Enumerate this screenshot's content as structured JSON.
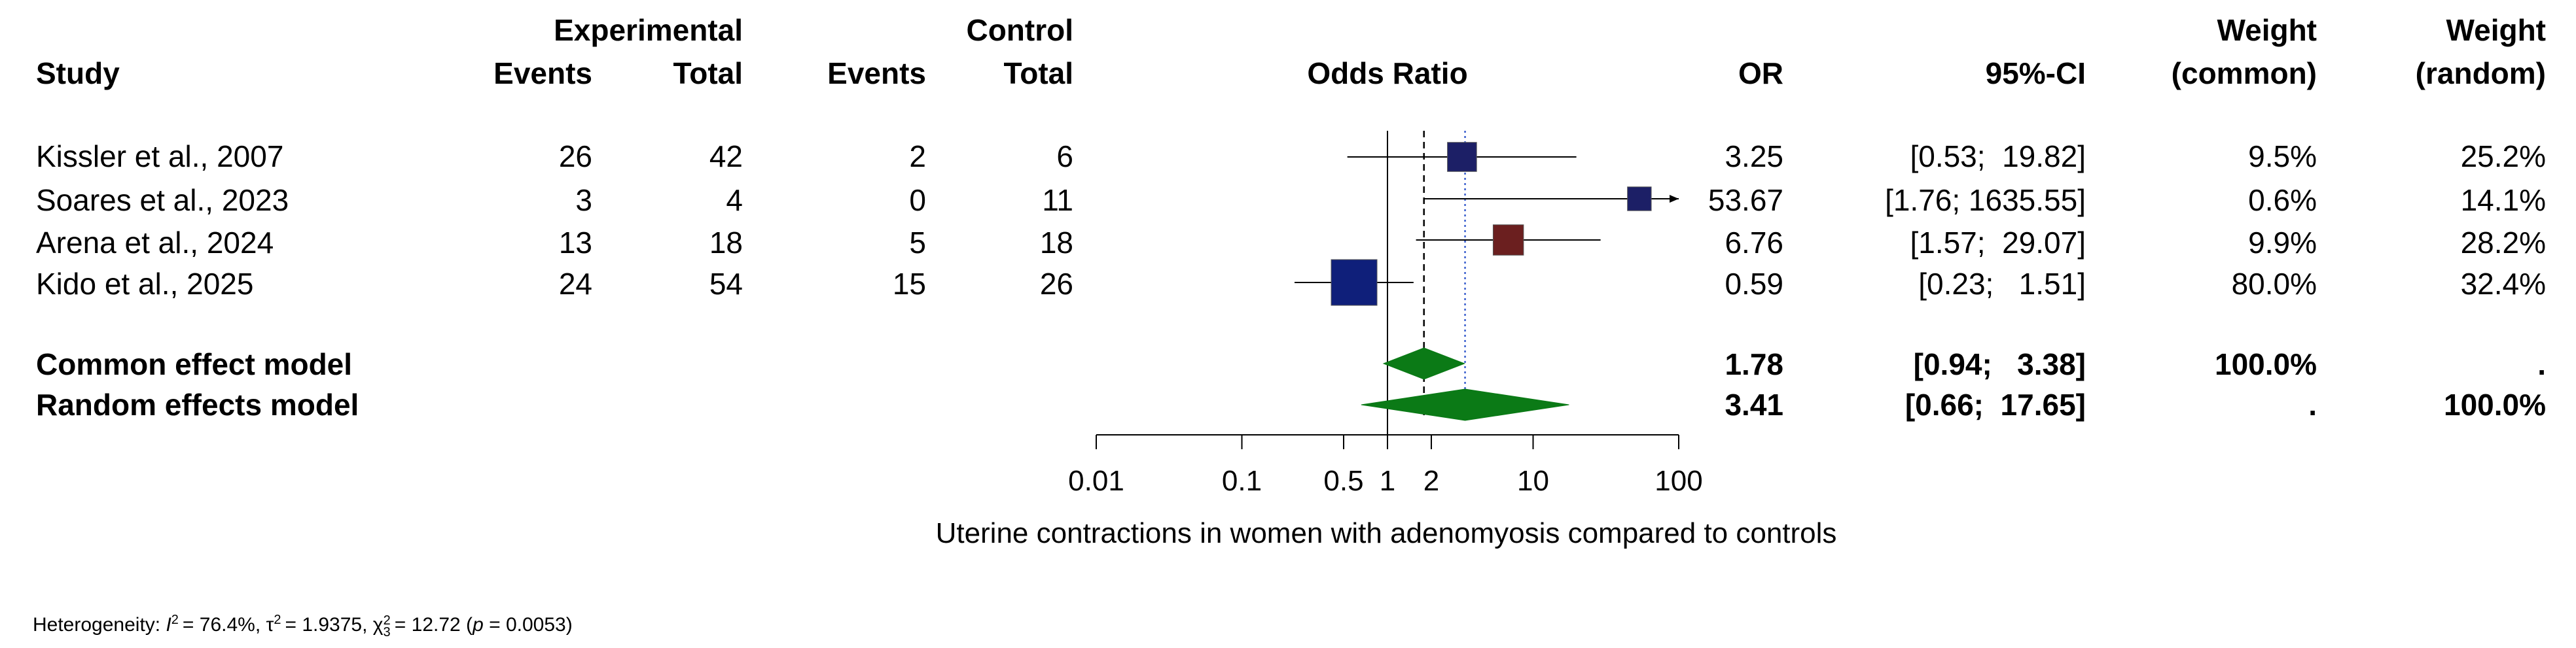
{
  "chart_data": {
    "type": "forest",
    "measure": "Odds Ratio",
    "headers": {
      "study": "Study",
      "experimental": "Experimental",
      "control": "Control",
      "events": "Events",
      "total": "Total",
      "plot": "Odds Ratio",
      "or": "OR",
      "ci": "95%-CI",
      "weight": "Weight",
      "weight_common": "(common)",
      "weight_random": "(random)"
    },
    "studies": [
      {
        "name": "Kissler et al., 2007",
        "e_events": "26",
        "e_total": "42",
        "c_events": "2",
        "c_total": "6",
        "or_text": "3.25",
        "ci_text": "[0.53;  19.82]",
        "w_common": "9.5%",
        "w_random": "25.2%",
        "or": 3.25,
        "lower": 0.53,
        "upper": 19.82,
        "weight": 25.2,
        "color": "#1c1f66"
      },
      {
        "name": "Soares et al., 2023",
        "e_events": "3",
        "e_total": "4",
        "c_events": "0",
        "c_total": "11",
        "or_text": "53.67",
        "ci_text": "[1.76; 1635.55]",
        "w_common": "0.6%",
        "w_random": "14.1%",
        "or": 53.67,
        "lower": 1.76,
        "upper": 1635.55,
        "weight": 14.1,
        "color": "#1c1f66"
      },
      {
        "name": "Arena et al., 2024",
        "e_events": "13",
        "e_total": "18",
        "c_events": "5",
        "c_total": "18",
        "or_text": "6.76",
        "ci_text": "[1.57;  29.07]",
        "w_common": "9.9%",
        "w_random": "28.2%",
        "or": 6.76,
        "lower": 1.57,
        "upper": 29.07,
        "weight": 28.2,
        "color": "#6b1f1f"
      },
      {
        "name": "Kido et al., 2025",
        "e_events": "24",
        "e_total": "54",
        "c_events": "15",
        "c_total": "26",
        "or_text": "0.59",
        "ci_text": "[0.23;   1.51]",
        "w_common": "80.0%",
        "w_random": "32.4%",
        "or": 0.59,
        "lower": 0.23,
        "upper": 1.51,
        "weight": 80.0,
        "color": "#0f1f7a"
      }
    ],
    "pooled": [
      {
        "name": "Common effect model",
        "or_text": "1.78",
        "ci_text": "[0.94;   3.38]",
        "w_common": "100.0%",
        "w_random": ".",
        "or": 1.78,
        "lower": 0.94,
        "upper": 3.38
      },
      {
        "name": "Random effects model",
        "or_text": "3.41",
        "ci_text": "[0.66;  17.65]",
        "w_common": ".",
        "w_random": "100.0%",
        "or": 3.41,
        "lower": 0.66,
        "upper": 17.65
      }
    ],
    "x_ticks": [
      0.01,
      0.1,
      0.5,
      1,
      2,
      10,
      100
    ],
    "x_tick_labels": [
      "0.01",
      "0.1",
      "0.5",
      "1",
      "2",
      "10",
      "100"
    ],
    "xlim": [
      0.01,
      100
    ],
    "x_scale": "log",
    "xlabel": "Uterine contractions in women with adenomyosis compared to controls",
    "heterogeneity": {
      "prefix": "Heterogeneity: ",
      "I2": "= 76.4%, ",
      "tau2": "= 1.9375, ",
      "chi2": "= 12.72 (",
      "p_text": " = 0.0053)",
      "df": "3"
    },
    "colors": {
      "pooled": "#0b7a16",
      "line": "#000000"
    }
  }
}
